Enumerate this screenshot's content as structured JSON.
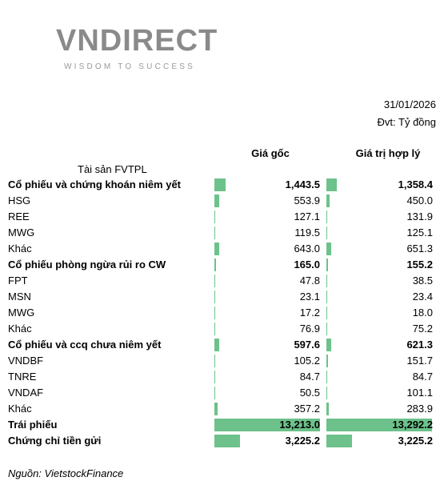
{
  "header": {
    "logo": "VNDIRECT",
    "tagline": "WISDOM TO SUCCESS",
    "date": "31/01/2026",
    "unit": "Đvt: Tỷ đồng"
  },
  "table": {
    "columns": [
      "Giá gốc",
      "Giá trị hợp lý"
    ],
    "row_header": "Tài sản FVTPL",
    "rows": [
      {
        "name": "Cổ phiếu và chứng khoán niêm yết",
        "bold": true,
        "cost": 1443.5,
        "cost_label": "1,443.5",
        "fair": 1358.4,
        "fair_label": "1,358.4"
      },
      {
        "name": "HSG",
        "bold": false,
        "cost": 553.9,
        "cost_label": "553.9",
        "fair": 450.0,
        "fair_label": "450.0"
      },
      {
        "name": "REE",
        "bold": false,
        "cost": 127.1,
        "cost_label": "127.1",
        "fair": 131.9,
        "fair_label": "131.9"
      },
      {
        "name": "MWG",
        "bold": false,
        "cost": 119.5,
        "cost_label": "119.5",
        "fair": 125.1,
        "fair_label": "125.1"
      },
      {
        "name": "Khác",
        "bold": false,
        "cost": 643.0,
        "cost_label": "643.0",
        "fair": 651.3,
        "fair_label": "651.3"
      },
      {
        "name": "Cổ phiếu phòng ngừa rủi ro CW",
        "bold": true,
        "cost": 165.0,
        "cost_label": "165.0",
        "fair": 155.2,
        "fair_label": "155.2"
      },
      {
        "name": "FPT",
        "bold": false,
        "cost": 47.8,
        "cost_label": "47.8",
        "fair": 38.5,
        "fair_label": "38.5"
      },
      {
        "name": "MSN",
        "bold": false,
        "cost": 23.1,
        "cost_label": "23.1",
        "fair": 23.4,
        "fair_label": "23.4"
      },
      {
        "name": "MWG",
        "bold": false,
        "cost": 17.2,
        "cost_label": "17.2",
        "fair": 18.0,
        "fair_label": "18.0"
      },
      {
        "name": "Khác",
        "bold": false,
        "cost": 76.9,
        "cost_label": "76.9",
        "fair": 75.2,
        "fair_label": "75.2"
      },
      {
        "name": "Cổ phiếu và ccq chưa niêm yết",
        "bold": true,
        "cost": 597.6,
        "cost_label": "597.6",
        "fair": 621.3,
        "fair_label": "621.3"
      },
      {
        "name": "VNDBF",
        "bold": false,
        "cost": 105.2,
        "cost_label": "105.2",
        "fair": 151.7,
        "fair_label": "151.7"
      },
      {
        "name": "TNRE",
        "bold": false,
        "cost": 84.7,
        "cost_label": "84.7",
        "fair": 84.7,
        "fair_label": "84.7"
      },
      {
        "name": "VNDAF",
        "bold": false,
        "cost": 50.5,
        "cost_label": "50.5",
        "fair": 101.1,
        "fair_label": "101.1"
      },
      {
        "name": "Khác",
        "bold": false,
        "cost": 357.2,
        "cost_label": "357.2",
        "fair": 283.9,
        "fair_label": "283.9"
      },
      {
        "name": "Trái phiếu",
        "bold": true,
        "cost": 13213.0,
        "cost_label": "13,213.0",
        "fair": 13292.2,
        "fair_label": "13,292.2"
      },
      {
        "name": "Chứng chỉ tiền gửi",
        "bold": true,
        "cost": 3225.2,
        "cost_label": "3,225.2",
        "fair": 3225.2,
        "fair_label": "3,225.2"
      }
    ]
  },
  "footer": {
    "source": "Nguồn: VietstockFinance"
  }
}
